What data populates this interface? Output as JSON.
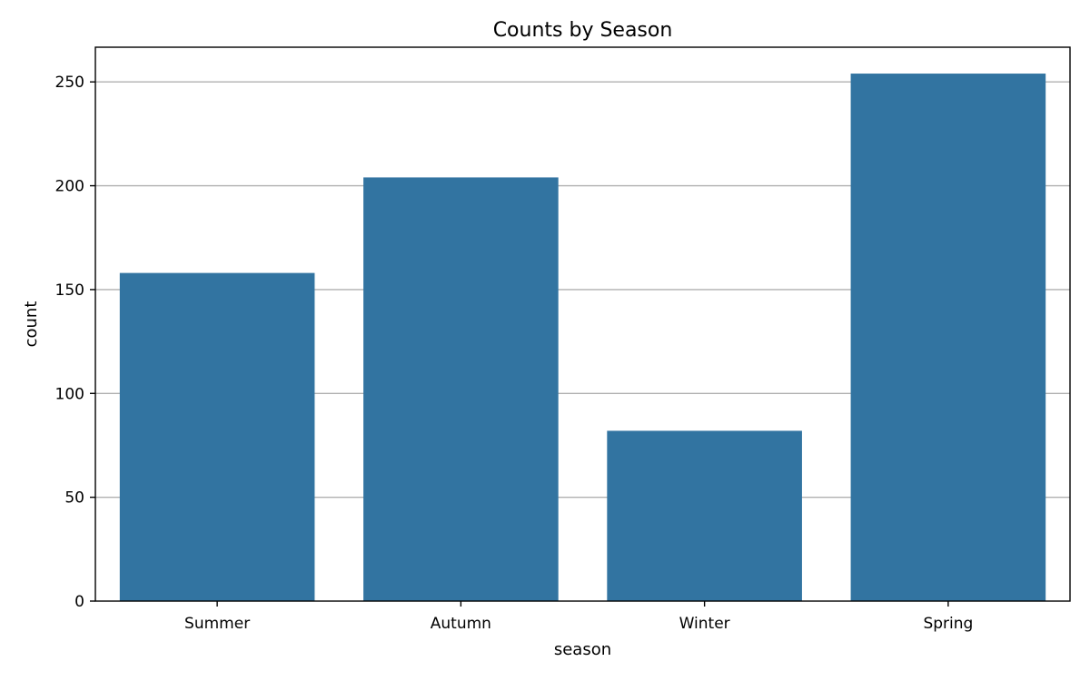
{
  "chart_data": {
    "type": "bar",
    "title": "Counts by Season",
    "xlabel": "season",
    "ylabel": "count",
    "categories": [
      "Summer",
      "Autumn",
      "Winter",
      "Spring"
    ],
    "values": [
      158,
      204,
      82,
      254
    ],
    "ylim": [
      0,
      266.7
    ],
    "yticks": [
      0,
      50,
      100,
      150,
      200,
      250
    ],
    "grid": "horizontal",
    "legend": "none",
    "bar_color": "#3274a1"
  }
}
